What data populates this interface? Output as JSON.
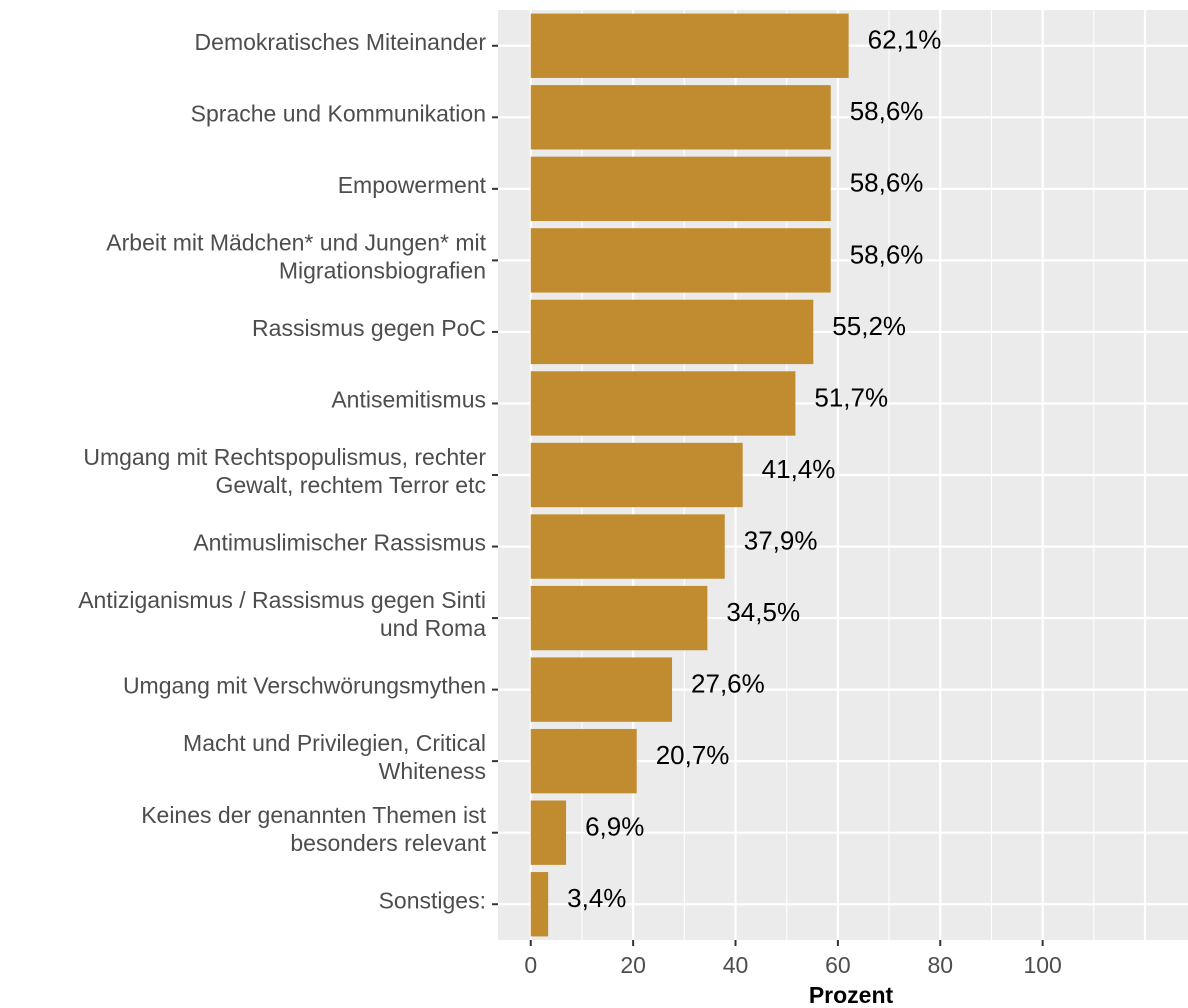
{
  "chart_data": {
    "type": "bar",
    "orientation": "horizontal",
    "categories": [
      "Demokratisches Miteinander",
      "Sprache und Kommunikation",
      "Empowerment",
      "Arbeit mit Mädchen* und Jungen* mit\nMigrationsbiografien",
      "Rassismus gegen PoC",
      "Antisemitismus",
      "Umgang mit Rechtspopulismus, rechter\nGewalt, rechtem Terror etc",
      "Antimuslimischer Rassismus",
      "Antiziganismus / Rassismus gegen Sinti\nund Roma",
      "Umgang mit Verschwörungsmythen",
      "Macht und Privilegien, Critical\nWhiteness",
      "Keines der genannten Themen ist\nbesonders relevant",
      "Sonstiges:"
    ],
    "values": [
      62.1,
      58.6,
      58.6,
      58.6,
      55.2,
      51.7,
      41.4,
      37.9,
      34.5,
      27.6,
      20.7,
      6.9,
      3.4
    ],
    "data_labels": [
      "62,1%",
      "58,6%",
      "58,6%",
      "58,6%",
      "55,2%",
      "51,7%",
      "41,4%",
      "37,9%",
      "34,5%",
      "27,6%",
      "20,7%",
      "6,9%",
      "3,4%"
    ],
    "xlabel": "Prozent",
    "ylabel": "",
    "xlim": [
      -6.4,
      128.4
    ],
    "xticks": [
      0,
      20,
      40,
      60,
      80,
      100
    ],
    "grid": true,
    "legend": "none",
    "colors": {
      "bar": "#c18c2f",
      "panel": "#ebebeb",
      "grid": "#ffffff",
      "axis_text": "#4d4d4d",
      "label_text": "#000000"
    }
  }
}
